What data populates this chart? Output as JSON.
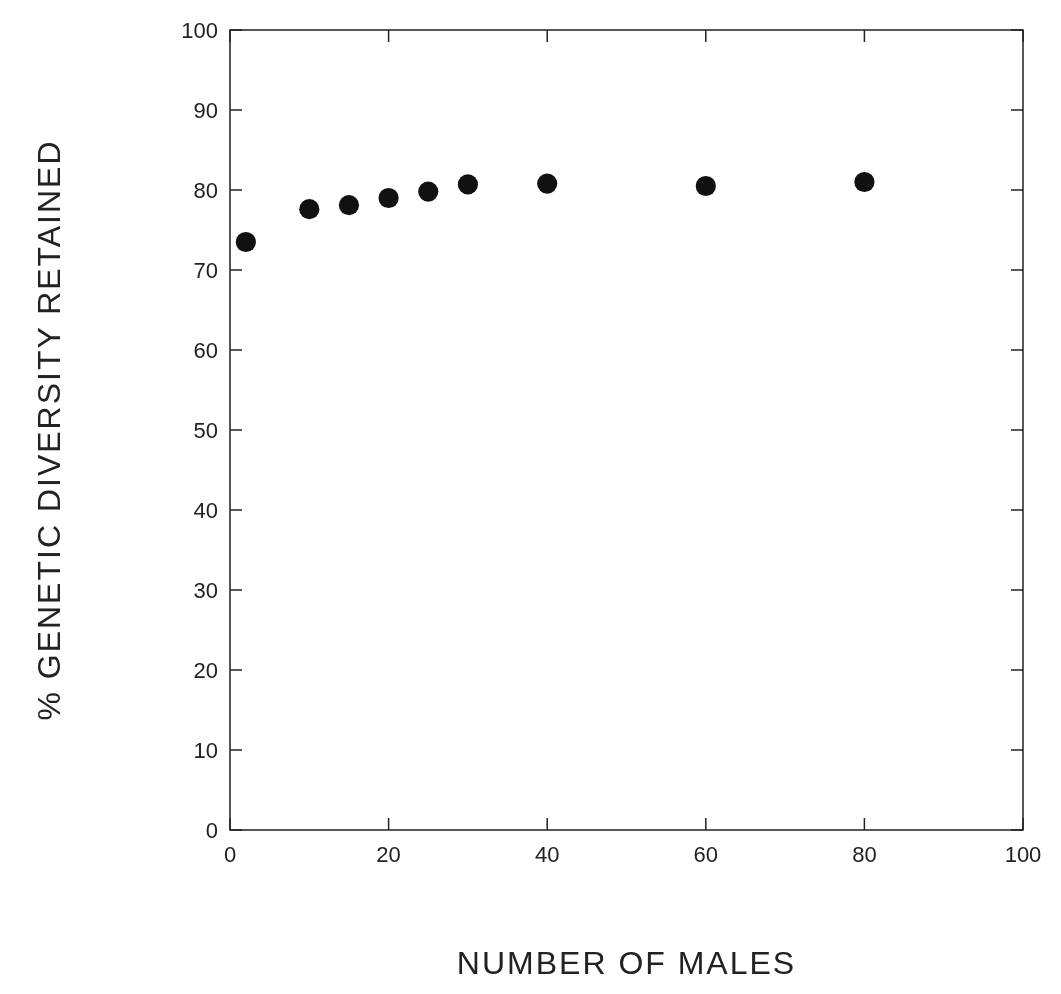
{
  "chart_data": {
    "type": "scatter",
    "xlabel": "NUMBER OF MALES",
    "ylabel": "% GENETIC DIVERSITY RETAINED",
    "x": [
      2,
      10,
      15,
      20,
      25,
      30,
      40,
      60,
      80
    ],
    "values": [
      73.5,
      77.6,
      78.1,
      79,
      79.8,
      80.7,
      80.8,
      80.5,
      81
    ],
    "color": "#111111",
    "marker": "circle",
    "grid": false,
    "xlim": [
      0,
      100
    ],
    "xticks": [
      0,
      20,
      40,
      60,
      80,
      100
    ],
    "ylim": [
      0,
      100
    ],
    "yticks": [
      0,
      10,
      20,
      30,
      40,
      50,
      60,
      70,
      80,
      90,
      100
    ]
  }
}
